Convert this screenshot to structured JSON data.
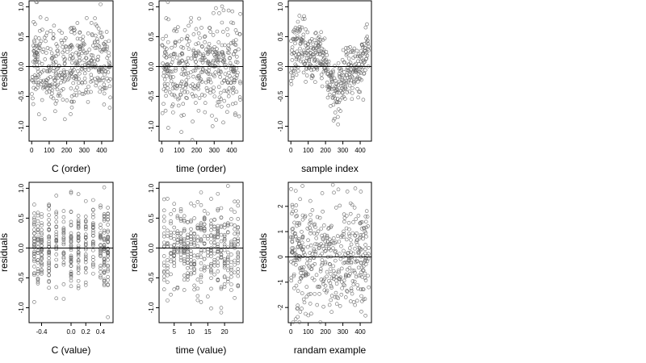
{
  "chart_data": [
    {
      "type": "scatter",
      "title": "",
      "xlabel": "C (order)",
      "ylabel": "residuals",
      "xlim": [
        -15,
        465
      ],
      "ylim": [
        -1.25,
        1.1
      ],
      "x_ticks": [
        0,
        100,
        200,
        300,
        400
      ],
      "x_tick_labels": [
        "0",
        "100",
        "200",
        "300",
        "400"
      ],
      "y_ticks": [
        -1.0,
        -0.5,
        0.0,
        0.5,
        1.0
      ],
      "y_tick_labels": [
        "-1.0",
        "-0.5",
        "0.0",
        "0.5",
        "1.0"
      ],
      "reference_line_y": 0,
      "grid": false,
      "points": {
        "x_range": [
          0,
          450
        ],
        "count": 420,
        "pattern": "index",
        "seed": 11,
        "spread": 0.36,
        "mean": 0.03
      }
    },
    {
      "type": "scatter",
      "title": "",
      "xlabel": "time (order)",
      "ylabel": "residuals",
      "xlim": [
        -15,
        465
      ],
      "ylim": [
        -1.25,
        1.1
      ],
      "x_ticks": [
        0,
        100,
        200,
        300,
        400
      ],
      "x_tick_labels": [
        "0",
        "100",
        "200",
        "300",
        "400"
      ],
      "y_ticks": [
        -1.0,
        -0.5,
        0.0,
        0.5,
        1.0
      ],
      "y_tick_labels": [
        "-1.0",
        "-0.5",
        "0.0",
        "0.5",
        "1.0"
      ],
      "reference_line_y": 0,
      "grid": false,
      "points": {
        "x_range": [
          0,
          450
        ],
        "count": 420,
        "pattern": "index",
        "seed": 23,
        "spread": 0.38,
        "mean": 0.02
      }
    },
    {
      "type": "scatter",
      "title": "",
      "xlabel": "sample index",
      "ylabel": "residuals",
      "xlim": [
        -15,
        465
      ],
      "ylim": [
        -1.25,
        1.1
      ],
      "x_ticks": [
        0,
        100,
        200,
        300,
        400
      ],
      "x_tick_labels": [
        "0",
        "100",
        "200",
        "300",
        "400"
      ],
      "y_ticks": [
        -1.0,
        -0.5,
        0.0,
        0.5,
        1.0
      ],
      "y_tick_labels": [
        "-1.0",
        "-0.5",
        "0.0",
        "0.5",
        "1.0"
      ],
      "reference_line_y": 0,
      "grid": false,
      "points": {
        "x_range": [
          0,
          450
        ],
        "count": 420,
        "pattern": "clustered",
        "seed": 37,
        "spread": 0.22,
        "mean": 0.0
      }
    },
    {
      "type": "scatter",
      "title": "",
      "xlabel": "C (value)",
      "ylabel": "residuals",
      "xlim": [
        -0.57,
        0.57
      ],
      "ylim": [
        -1.25,
        1.1
      ],
      "x_ticks": [
        -0.4,
        0.0,
        0.2,
        0.4
      ],
      "x_tick_labels": [
        "-0.4",
        "0.0",
        "0.2",
        "0.4"
      ],
      "y_ticks": [
        -1.0,
        -0.5,
        0.0,
        0.5,
        1.0
      ],
      "y_tick_labels": [
        "-1.0",
        "-0.5",
        "0.0",
        "0.5",
        "1.0"
      ],
      "reference_line_y": 0,
      "grid": false,
      "points": {
        "x_values": [
          -0.5,
          -0.45,
          -0.4,
          -0.3,
          -0.2,
          -0.1,
          0.0,
          0.1,
          0.2,
          0.3,
          0.4,
          0.45,
          0.5
        ],
        "count": 420,
        "pattern": "discrete",
        "seed": 41,
        "spread": 0.36,
        "mean": 0.0
      }
    },
    {
      "type": "scatter",
      "title": "",
      "xlabel": "time (value)",
      "ylabel": "residuals",
      "xlim": [
        0.5,
        25.5
      ],
      "ylim": [
        -1.25,
        1.1
      ],
      "x_ticks": [
        5,
        10,
        15,
        20
      ],
      "x_tick_labels": [
        "5",
        "10",
        "15",
        "20"
      ],
      "y_ticks": [
        -1.0,
        -0.5,
        0.0,
        0.5,
        1.0
      ],
      "y_tick_labels": [
        "-1.0",
        "-0.5",
        "0.0",
        "0.5",
        "1.0"
      ],
      "reference_line_y": 0,
      "grid": false,
      "points": {
        "x_values": [
          2,
          3,
          4,
          5,
          6,
          7,
          8,
          9,
          10,
          11,
          12,
          13,
          14,
          15,
          16,
          17,
          18,
          19,
          20,
          21,
          22,
          23,
          24
        ],
        "count": 420,
        "pattern": "discrete",
        "seed": 53,
        "spread": 0.38,
        "mean": 0.0
      }
    },
    {
      "type": "scatter",
      "title": "",
      "xlabel": "randam example",
      "ylabel": "residuals",
      "xlim": [
        -15,
        465
      ],
      "ylim": [
        -2.6,
        2.95
      ],
      "x_ticks": [
        0,
        100,
        200,
        300,
        400
      ],
      "x_tick_labels": [
        "0",
        "100",
        "200",
        "300",
        "400"
      ],
      "y_ticks": [
        -2,
        -1,
        0,
        1,
        2
      ],
      "y_tick_labels": [
        "-2",
        "-1",
        "0",
        "1",
        "2"
      ],
      "reference_line_y": 0,
      "grid": false,
      "points": {
        "x_range": [
          0,
          450
        ],
        "count": 450,
        "pattern": "uniform",
        "seed": 67,
        "spread": 1.0,
        "mean": 0.0
      }
    }
  ]
}
